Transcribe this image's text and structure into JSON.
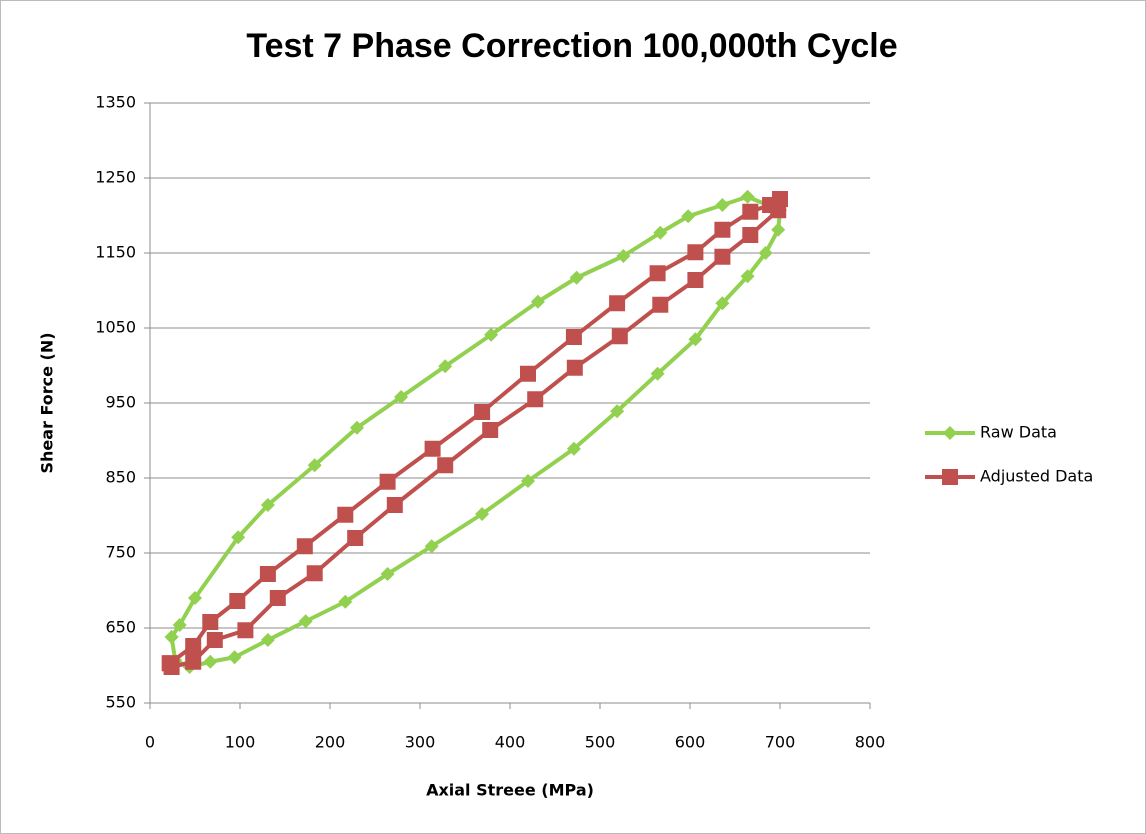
{
  "chart_data": {
    "type": "scatter",
    "title": "Test 7 Phase Correction 100,000th Cycle",
    "x_label": "Axial Streee (MPa)",
    "y_label": "Shear Force (N)",
    "xlim": [
      0,
      800
    ],
    "xticks": [
      0,
      100,
      200,
      300,
      400,
      500,
      600,
      700,
      800
    ],
    "ylim": [
      550,
      1350
    ],
    "yticks": [
      550,
      650,
      750,
      850,
      950,
      1050,
      1150,
      1250,
      1350
    ],
    "grid": true,
    "legend": "right",
    "series": [
      {
        "name": "Raw Data",
        "color": "#92d050",
        "marker": "diamond",
        "x": [
          24,
          33,
          50,
          98,
          131,
          183,
          230,
          279,
          328,
          379,
          431,
          474,
          526,
          567,
          598,
          636,
          664,
          700,
          698,
          684,
          664,
          636,
          606,
          564,
          519,
          471,
          420,
          369,
          313,
          264,
          217,
          173,
          131,
          94,
          67,
          44,
          28,
          24
        ],
        "values": [
          638,
          654,
          690,
          771,
          814,
          867,
          917,
          958,
          999,
          1041,
          1085,
          1117,
          1146,
          1177,
          1199,
          1214,
          1225,
          1207,
          1181,
          1150,
          1119,
          1083,
          1035,
          989,
          939,
          889,
          846,
          802,
          759,
          722,
          685,
          659,
          634,
          611,
          605,
          598,
          607,
          638
        ]
      },
      {
        "name": "Adjusted Data",
        "color": "#c0504d",
        "marker": "square",
        "x": [
          22,
          48,
          67,
          97,
          131,
          172,
          217,
          264,
          314,
          369,
          420,
          471,
          519,
          564,
          606,
          636,
          667,
          689,
          700,
          698,
          667,
          636,
          606,
          567,
          522,
          472,
          428,
          378,
          328,
          272,
          228,
          183,
          142,
          106,
          72,
          48,
          24,
          22
        ],
        "values": [
          603,
          626,
          658,
          686,
          722,
          759,
          801,
          845,
          889,
          938,
          989,
          1038,
          1083,
          1123,
          1151,
          1181,
          1205,
          1214,
          1222,
          1207,
          1174,
          1145,
          1114,
          1081,
          1039,
          997,
          955,
          914,
          867,
          814,
          770,
          723,
          690,
          647,
          634,
          605,
          598,
          603
        ]
      }
    ]
  }
}
